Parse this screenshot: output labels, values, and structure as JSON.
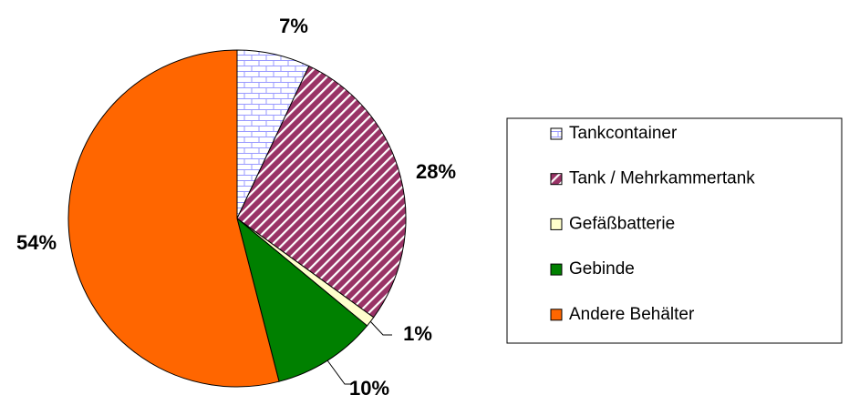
{
  "chart_data": {
    "type": "pie",
    "categories": [
      "Tankcontainer",
      "Tank / Mehrkammertank",
      "Gefäßbatterie",
      "Gebinde",
      "Andere Behälter"
    ],
    "values": [
      7,
      28,
      1,
      10,
      54
    ],
    "value_labels": [
      "7%",
      "28%",
      "1%",
      "10%",
      "54%"
    ],
    "colors": [
      "#ccccff",
      "#993366",
      "#ffffcc",
      "#008000",
      "#ff6600"
    ],
    "patterns": [
      "brick",
      "diagonal",
      null,
      null,
      null
    ],
    "legend": "right"
  }
}
